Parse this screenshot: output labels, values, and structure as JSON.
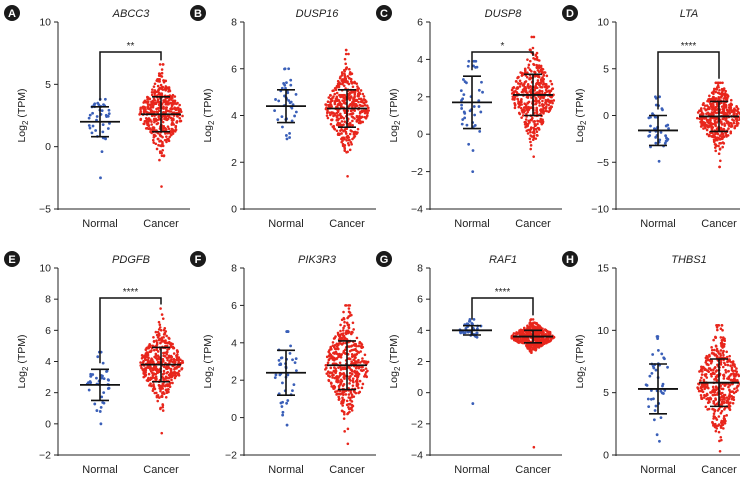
{
  "colors": {
    "normal_points": "#3a5fb8",
    "cancer_points": "#e8261c",
    "axis": "#222222",
    "summary_bars": "#111111",
    "letter_badge": "#1a1a1a"
  },
  "ylabel_prefix": "Log",
  "ylabel_subscript": "2",
  "ylabel_suffix": " (TPM)",
  "chart_data": [
    {
      "panel": "A",
      "title": "ABCC3",
      "type": "scatter",
      "ylim": [
        -5,
        10
      ],
      "yticks": [
        -5,
        0,
        5,
        10
      ],
      "categories": [
        "Normal",
        "Cancer"
      ],
      "series": [
        {
          "name": "Normal",
          "n": 40,
          "mean": 2.0,
          "sd": 1.2,
          "min": -2.5,
          "max": 3.8
        },
        {
          "name": "Cancer",
          "n": 420,
          "mean": 2.6,
          "sd": 1.4,
          "min": -3.2,
          "max": 6.6
        }
      ],
      "significance": "**"
    },
    {
      "panel": "B",
      "title": "DUSP16",
      "type": "scatter",
      "ylim": [
        0,
        8
      ],
      "yticks": [
        0,
        2,
        4,
        6,
        8
      ],
      "categories": [
        "Normal",
        "Cancer"
      ],
      "series": [
        {
          "name": "Normal",
          "n": 40,
          "mean": 4.4,
          "sd": 0.7,
          "min": 3.0,
          "max": 6.0
        },
        {
          "name": "Cancer",
          "n": 420,
          "mean": 4.3,
          "sd": 0.8,
          "min": 1.4,
          "max": 6.8
        }
      ],
      "significance": ""
    },
    {
      "panel": "C",
      "title": "DUSP8",
      "type": "scatter",
      "ylim": [
        -4,
        6
      ],
      "yticks": [
        -4,
        -2,
        0,
        2,
        4,
        6
      ],
      "categories": [
        "Normal",
        "Cancer"
      ],
      "series": [
        {
          "name": "Normal",
          "n": 40,
          "mean": 1.7,
          "sd": 1.4,
          "min": -2.0,
          "max": 3.9
        },
        {
          "name": "Cancer",
          "n": 420,
          "mean": 2.1,
          "sd": 1.1,
          "min": -1.2,
          "max": 5.2
        }
      ],
      "significance": "*"
    },
    {
      "panel": "D",
      "title": "LTA",
      "type": "scatter",
      "ylim": [
        -10,
        10
      ],
      "yticks": [
        -10,
        -5,
        0,
        5,
        10
      ],
      "categories": [
        "Normal",
        "Cancer"
      ],
      "series": [
        {
          "name": "Normal",
          "n": 40,
          "mean": -1.6,
          "sd": 1.6,
          "min": -4.9,
          "max": 2.0
        },
        {
          "name": "Cancer",
          "n": 420,
          "mean": -0.1,
          "sd": 1.6,
          "min": -5.5,
          "max": 3.5
        }
      ],
      "significance": "****"
    },
    {
      "panel": "E",
      "title": "PDGFB",
      "type": "scatter",
      "ylim": [
        -2,
        10
      ],
      "yticks": [
        -2,
        0,
        2,
        4,
        6,
        8,
        10
      ],
      "categories": [
        "Normal",
        "Cancer"
      ],
      "series": [
        {
          "name": "Normal",
          "n": 40,
          "mean": 2.5,
          "sd": 1.0,
          "min": 0.0,
          "max": 4.6
        },
        {
          "name": "Cancer",
          "n": 420,
          "mean": 3.8,
          "sd": 1.1,
          "min": -0.6,
          "max": 7.4
        }
      ],
      "significance": "****"
    },
    {
      "panel": "F",
      "title": "PIK3R3",
      "type": "scatter",
      "ylim": [
        -2,
        8
      ],
      "yticks": [
        -2,
        0,
        2,
        4,
        6,
        8
      ],
      "categories": [
        "Normal",
        "Cancer"
      ],
      "series": [
        {
          "name": "Normal",
          "n": 40,
          "mean": 2.4,
          "sd": 1.2,
          "min": -0.4,
          "max": 4.6
        },
        {
          "name": "Cancer",
          "n": 420,
          "mean": 2.8,
          "sd": 1.3,
          "min": -1.4,
          "max": 6.0
        }
      ],
      "significance": ""
    },
    {
      "panel": "G",
      "title": "RAF1",
      "type": "scatter",
      "ylim": [
        -4,
        8
      ],
      "yticks": [
        -4,
        -2,
        0,
        2,
        4,
        6,
        8
      ],
      "categories": [
        "Normal",
        "Cancer"
      ],
      "series": [
        {
          "name": "Normal",
          "n": 40,
          "mean": 4.0,
          "sd": 0.3,
          "min": -0.7,
          "max": 4.7
        },
        {
          "name": "Cancer",
          "n": 420,
          "mean": 3.6,
          "sd": 0.4,
          "min": -3.5,
          "max": 4.7
        }
      ],
      "significance": "****"
    },
    {
      "panel": "H",
      "title": "THBS1",
      "type": "scatter",
      "ylim": [
        0,
        15
      ],
      "yticks": [
        0,
        5,
        10,
        15
      ],
      "categories": [
        "Normal",
        "Cancer"
      ],
      "series": [
        {
          "name": "Normal",
          "n": 40,
          "mean": 5.3,
          "sd": 2.0,
          "min": 1.1,
          "max": 9.5
        },
        {
          "name": "Cancer",
          "n": 420,
          "mean": 5.8,
          "sd": 1.9,
          "min": 0.3,
          "max": 10.4
        }
      ],
      "significance": ""
    }
  ]
}
